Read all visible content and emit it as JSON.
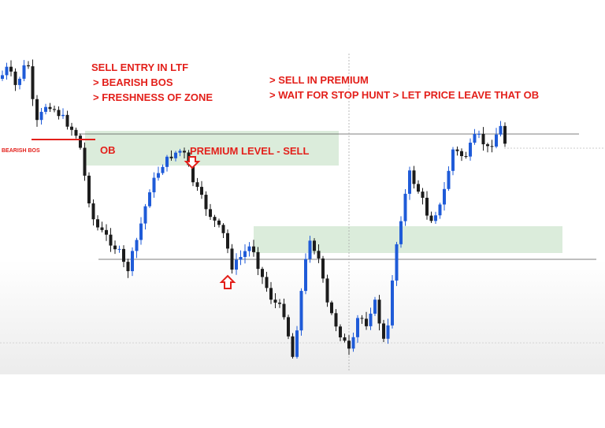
{
  "header": {
    "title": "SELL ENTRY IN LTF",
    "points": [
      "> BEARISH BOS",
      "> FRESHNESS OF ZONE"
    ]
  },
  "notes": [
    "> SELL IN PREMIUM",
    "> WAIT FOR STOP HUNT > LET PRICE LEAVE THAT OB"
  ],
  "labels": {
    "bos": "BEARISH BOS",
    "ob": "OB",
    "premium": "PREMIUM LEVEL - SELL"
  }
}
